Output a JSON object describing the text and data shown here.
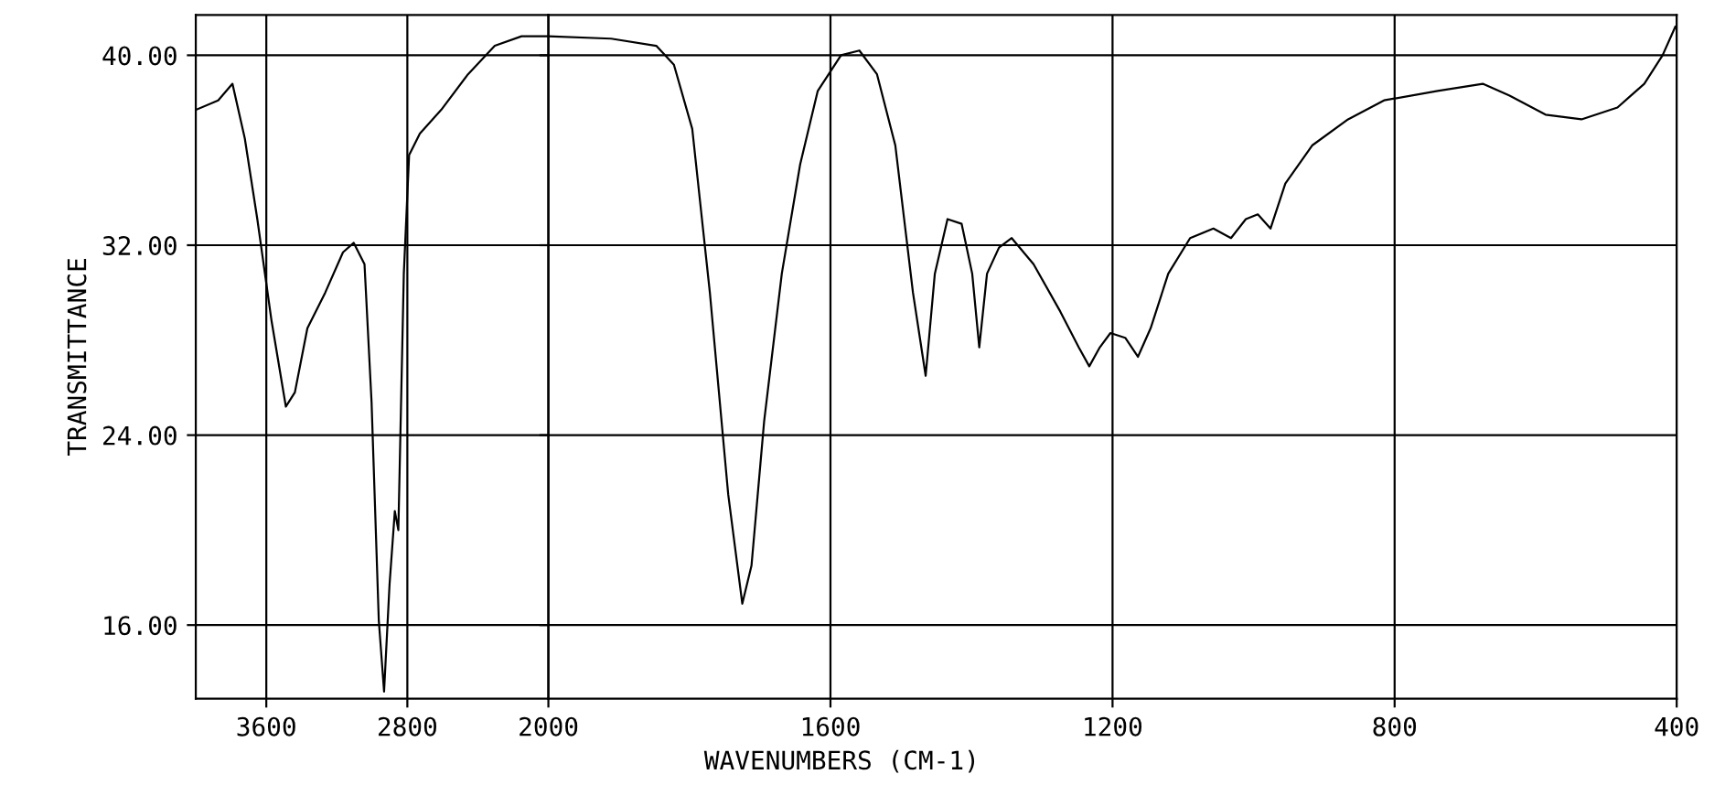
{
  "chart_data": [
    {
      "type": "line",
      "ylabel": "TRANSMITTANCE",
      "x": [
        4000,
        3873,
        3792,
        3722,
        3651,
        3570,
        3489,
        3438,
        3367,
        3266,
        3165,
        3104,
        3043,
        3003,
        2962,
        2932,
        2901,
        2871,
        2851,
        2820,
        2790,
        2729,
        2608,
        2456,
        2304,
        2152,
        2000
      ],
      "series": [
        {
          "color": "#000000",
          "values": [
            37.7,
            38.1,
            38.8,
            36.5,
            33.1,
            28.8,
            25.2,
            25.8,
            28.5,
            30.0,
            31.7,
            32.1,
            31.2,
            25.4,
            16.2,
            13.2,
            17.7,
            20.8,
            20.0,
            30.8,
            35.8,
            36.7,
            37.7,
            39.2,
            40.4,
            40.8,
            40.8
          ]
        }
      ],
      "xlim": [
        4000,
        2000
      ],
      "xticks": [
        3600,
        2800
      ],
      "ylim": [
        12.9,
        41.7
      ],
      "yticks": [
        {
          "value": 16,
          "label": "16.00"
        },
        {
          "value": 24,
          "label": "24.00"
        },
        {
          "value": 32,
          "label": "32.00"
        },
        {
          "value": 40,
          "label": "40.00"
        }
      ],
      "grid": true,
      "legend": false,
      "marker": "none",
      "line_style": "solid"
    },
    {
      "type": "line",
      "xlabel": "WAVENUMBERS (CM-1)",
      "x": [
        2000,
        1911,
        1847,
        1822,
        1796,
        1771,
        1745,
        1725,
        1712,
        1694,
        1669,
        1643,
        1618,
        1585,
        1559,
        1534,
        1508,
        1483,
        1465,
        1452,
        1434,
        1414,
        1399,
        1389,
        1378,
        1361,
        1343,
        1312,
        1274,
        1248,
        1233,
        1218,
        1203,
        1182,
        1164,
        1146,
        1121,
        1090,
        1057,
        1032,
        1011,
        994,
        976,
        955,
        917,
        866,
        815,
        739,
        675,
        637,
        586,
        535,
        484,
        446,
        420,
        402
      ],
      "series": [
        {
          "color": "#000000",
          "values": [
            40.8,
            40.7,
            40.4,
            39.6,
            36.9,
            30.0,
            21.5,
            16.9,
            18.5,
            24.6,
            30.8,
            35.4,
            38.5,
            40.0,
            40.2,
            39.2,
            36.2,
            30.0,
            26.5,
            30.8,
            33.1,
            32.9,
            30.8,
            27.7,
            30.8,
            31.9,
            32.3,
            31.2,
            29.2,
            27.7,
            26.9,
            27.7,
            28.3,
            28.1,
            27.3,
            28.5,
            30.8,
            32.3,
            32.7,
            32.3,
            33.1,
            33.3,
            32.7,
            34.6,
            36.2,
            37.3,
            38.1,
            38.5,
            38.8,
            38.3,
            37.5,
            37.3,
            37.8,
            38.8,
            40.0,
            41.2
          ]
        }
      ],
      "xlim": [
        2000,
        400
      ],
      "xticks": [
        2000,
        1600,
        1200,
        800,
        400
      ],
      "ylim": [
        12.9,
        41.7
      ],
      "yticks": [
        16,
        24,
        32,
        40
      ],
      "tick_labels": "x",
      "grid": true,
      "legend": false,
      "marker": "none",
      "line_style": "solid"
    }
  ]
}
